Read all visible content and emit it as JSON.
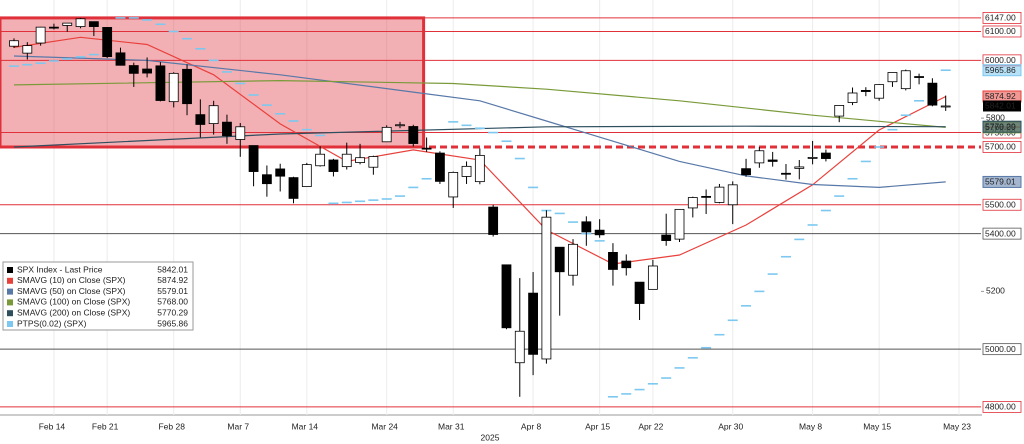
{
  "chart_data": {
    "type": "candlestick",
    "categories": [
      null,
      null,
      null,
      "Feb 14",
      null,
      null,
      null,
      "Feb 21",
      null,
      null,
      null,
      null,
      "Feb 28",
      null,
      null,
      null,
      null,
      "Mar 7",
      null,
      null,
      null,
      null,
      "Mar 14",
      null,
      null,
      null,
      null,
      null,
      "Mar 24",
      null,
      null,
      null,
      null,
      "Mar 31",
      null,
      null,
      null,
      null,
      null,
      "Apr 8",
      null,
      null,
      null,
      null,
      "Apr 15",
      null,
      null,
      null,
      "Apr 22",
      null,
      null,
      null,
      null,
      null,
      "Apr 30",
      null,
      null,
      null,
      null,
      null,
      "May 8",
      null,
      null,
      null,
      null,
      "May 15",
      null,
      null,
      null,
      null,
      null,
      "May 23"
    ],
    "x_label": "2025",
    "price_name": "SPX Index - Last Price",
    "price_label": "5842.01",
    "open": [
      6049,
      6025,
      6060,
      6115,
      6121,
      6117,
      6134,
      6114,
      6026,
      5982,
      5970,
      5981,
      5857,
      5969,
      5812,
      5781,
      5786,
      5726,
      5705,
      5604,
      5624,
      5594,
      5563,
      5635,
      5655,
      5632,
      5646,
      5630,
      5718,
      5775,
      5771,
      5696,
      5679,
      5527,
      5598,
      5580,
      5492,
      5292,
      4953,
      5194,
      4966,
      5353,
      5256,
      5441,
      5412,
      5335,
      5305,
      5232,
      5207,
      5395,
      5381,
      5489,
      5529,
      5508,
      5500,
      5625,
      5645,
      5655,
      5609,
      5626,
      5663,
      5679,
      5807,
      5854,
      5896,
      5869,
      5926,
      5902,
      5944,
      5921,
      5842,
      null
    ],
    "high": [
      6076,
      6063,
      6116,
      6127,
      6129,
      6147,
      6134,
      6115,
      6044,
      5992,
      6010,
      5994,
      5959,
      5986,
      5865,
      5860,
      5812,
      5783,
      5705,
      5636,
      5642,
      5597,
      5645,
      5703,
      5659,
      5715,
      5711,
      5670,
      5775,
      5787,
      5777,
      5733,
      5685,
      5615,
      5650,
      5695,
      5500,
      5292,
      5246,
      5267,
      5481,
      5353,
      5381,
      5460,
      5450,
      5367,
      5328,
      5232,
      5309,
      5469,
      5485,
      5528,
      5553,
      5572,
      5581,
      5659,
      5700,
      5683,
      5641,
      5655,
      5721,
      5691,
      5845,
      5906,
      5907,
      5917,
      5958,
      5968,
      5954,
      5938,
      5878,
      null
    ],
    "low": [
      6043,
      6003,
      6051,
      6107,
      6099,
      6111,
      6084,
      6008,
      5982,
      5908,
      5941,
      5858,
      5837,
      5810,
      5733,
      5743,
      5711,
      5666,
      5564,
      5528,
      5546,
      5505,
      5563,
      5632,
      5598,
      5622,
      5640,
      5604,
      5718,
      5765,
      5702,
      5683,
      5572,
      5489,
      5572,
      5571,
      5390,
      5069,
      4835,
      4910,
      4950,
      5116,
      5220,
      5358,
      5386,
      5220,
      5255,
      5101,
      5207,
      5358,
      5371,
      5456,
      5468,
      5505,
      5433,
      5597,
      5628,
      5632,
      5587,
      5588,
      5640,
      5650,
      5786,
      5845,
      5876,
      5860,
      5908,
      5896,
      5917,
      5841,
      5825,
      null
    ],
    "close": [
      6068,
      6051,
      6115,
      6114,
      6129,
      6144,
      6117,
      6013,
      5983,
      5955,
      5956,
      5861,
      5955,
      5850,
      5778,
      5843,
      5739,
      5770,
      5615,
      5573,
      5599,
      5522,
      5639,
      5675,
      5615,
      5675,
      5663,
      5667,
      5768,
      5777,
      5712,
      5693,
      5581,
      5612,
      5633,
      5671,
      5397,
      5074,
      5062,
      4982,
      5457,
      5268,
      5363,
      5406,
      5396,
      5276,
      5282,
      5158,
      5288,
      5376,
      5484,
      5525,
      5528,
      5561,
      5569,
      5604,
      5687,
      5650,
      5607,
      5631,
      5664,
      5660,
      5844,
      5887,
      5892,
      5916,
      5958,
      5964,
      5941,
      5845,
      5842.01,
      null
    ],
    "series": [
      {
        "name": "SMAVG (10)  on Close (SPX)",
        "color": "#e8413c",
        "style": "line",
        "legend_value": "5874.92",
        "x": [
          0,
          5,
          10,
          15,
          20,
          25,
          30,
          35,
          40,
          45,
          50,
          55,
          60,
          65,
          70
        ],
        "values": [
          6045,
          6080,
          6055,
          5950,
          5780,
          5650,
          5690,
          5655,
          5413,
          5295,
          5326,
          5430,
          5569,
          5759,
          5874.92
        ]
      },
      {
        "name": "SMAVG (50)  on Close (SPX)",
        "color": "#5878a8",
        "style": "line",
        "legend_value": "5579.01",
        "x": [
          0,
          10,
          20,
          30,
          35,
          40,
          45,
          50,
          55,
          60,
          65,
          70
        ],
        "values": [
          6015,
          6000,
          5950,
          5890,
          5860,
          5790,
          5720,
          5650,
          5600,
          5570,
          5560,
          5579.01
        ]
      },
      {
        "name": "SMAVG (100)  on Close (SPX)",
        "color": "#7a9a3a",
        "style": "line",
        "legend_value": "5768.00",
        "x": [
          0,
          20,
          33,
          40,
          50,
          60,
          70
        ],
        "values": [
          5915,
          5930,
          5920,
          5900,
          5860,
          5810,
          5768
        ]
      },
      {
        "name": "SMAVG (200)  on Close (SPX)",
        "color": "#2f4f5f",
        "style": "line",
        "legend_value": "5770.29",
        "x": [
          0,
          20,
          40,
          55,
          70
        ],
        "values": [
          5700,
          5745,
          5770,
          5772,
          5770.29
        ]
      },
      {
        "name": "PTPS(0.02) (SPX)",
        "color": "#7cc8f0",
        "style": "dash",
        "legend_value": "5965.86",
        "x": [
          0,
          1,
          2,
          3,
          4,
          5,
          6,
          7,
          8,
          9,
          10,
          11,
          12,
          13,
          14,
          15,
          16,
          17,
          18,
          19,
          20,
          21,
          22,
          23,
          24,
          25,
          26,
          27,
          28,
          29,
          30,
          31,
          32,
          33,
          34,
          35,
          36,
          37,
          38,
          39,
          40,
          41,
          42,
          43,
          44,
          45,
          46,
          47,
          48,
          49,
          50,
          51,
          52,
          53,
          54,
          55,
          56,
          57,
          58,
          59,
          60,
          61,
          62,
          63,
          64,
          65,
          66,
          67,
          68,
          69,
          70
        ],
        "values": [
          5980,
          5985,
          5990,
          5998,
          6005,
          6012,
          6020,
          6030,
          6147,
          6147,
          6140,
          6125,
          6100,
          6075,
          6040,
          6000,
          5960,
          5920,
          5880,
          5845,
          5815,
          5790,
          5760,
          5740,
          5505,
          5508,
          5512,
          5516,
          5520,
          5530,
          5560,
          5590,
          5620,
          5787,
          5775,
          5765,
          5750,
          5720,
          5660,
          5560,
          5480,
          5470,
          5440,
          5400,
          5375,
          4835,
          4845,
          4860,
          4880,
          4900,
          4935,
          4970,
          5005,
          5050,
          5100,
          5150,
          5200,
          5260,
          5320,
          5380,
          5430,
          5480,
          5530,
          5590,
          5650,
          5700,
          5760,
          5810,
          5860,
          5910,
          5965.86
        ]
      }
    ],
    "zone": {
      "low": 5700,
      "high": 6147,
      "start": 0,
      "end": 31,
      "color": "#e0303a"
    },
    "ylim": [
      4772,
      6209
    ],
    "yticks": [
      {
        "value": 4800,
        "label": "4800.00",
        "line": "#e0303a"
      },
      {
        "value": 5000,
        "label": "5000.00",
        "line": "#555555"
      },
      5200,
      {
        "value": 5400,
        "label": "5400.00",
        "line": "#555555"
      },
      {
        "value": 5500,
        "label": "5500.00",
        "line": "#e0303a"
      },
      {
        "value": 5700,
        "label": "5700.00",
        "line": "#e0303a",
        "dash": true
      },
      {
        "value": 5750,
        "label": "5750.00",
        "line": "#e0303a"
      },
      5800,
      {
        "value": 6000,
        "label": "6000.00",
        "line": "#e0303a"
      },
      {
        "value": 6100,
        "label": "6100.00",
        "line": "#e0303a"
      },
      {
        "value": 6147,
        "label": "6147.00",
        "line": "#e0303a"
      }
    ]
  }
}
